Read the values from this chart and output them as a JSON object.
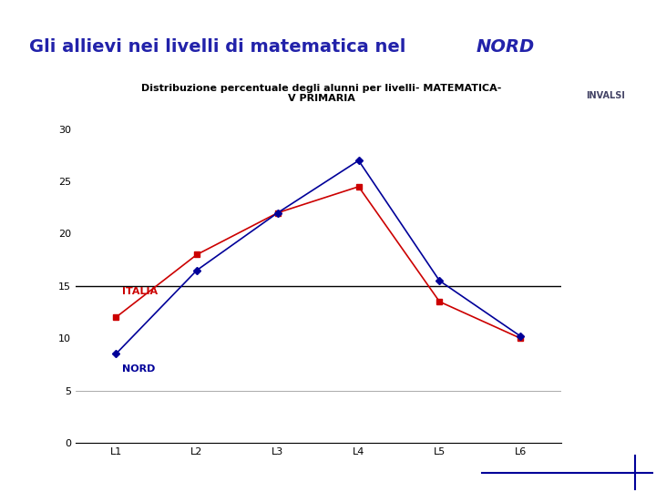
{
  "title_main": "Gli allievi nei livelli di matematica nel ",
  "title_italic": "NORD",
  "subtitle_line1": "Distribuzione percentuale degli alunni per livelli- MATEMATICA-",
  "subtitle_line2": "V PRIMARIA",
  "categories": [
    "L1",
    "L2",
    "L3",
    "L4",
    "L5",
    "L6"
  ],
  "italia_values": [
    12,
    18,
    22,
    24.5,
    13.5,
    10
  ],
  "nord_values": [
    8.5,
    16.5,
    22,
    27,
    15.5,
    10.2
  ],
  "italia_color": "#cc0000",
  "nord_color": "#000099",
  "italia_label": "ITALIA",
  "nord_label": "NORD",
  "ylim": [
    0,
    32
  ],
  "yticks": [
    0,
    5,
    10,
    15,
    20,
    25,
    30
  ],
  "hline_y": 15,
  "hline_color": "#000000",
  "bg_color": "#ffffff",
  "title_color": "#2222aa",
  "title_fontsize": 14,
  "subtitle_fontsize": 8,
  "label_fontsize": 8,
  "tick_fontsize": 8,
  "vbar_color": "#2244cc",
  "hbar_color": "#aaaadd",
  "invalsi_text_color": "#444466",
  "invalsi_box_color": "#7a9ab5",
  "bottom_line_color": "#000099"
}
